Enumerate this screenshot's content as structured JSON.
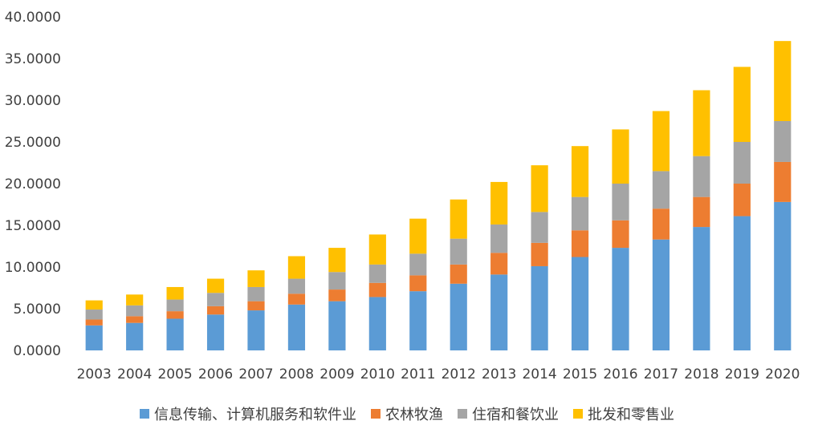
{
  "chart_data": {
    "type": "bar",
    "stacked": true,
    "categories": [
      "2003",
      "2004",
      "2005",
      "2006",
      "2007",
      "2008",
      "2009",
      "2010",
      "2011",
      "2012",
      "2013",
      "2014",
      "2015",
      "2016",
      "2017",
      "2018",
      "2019",
      "2020"
    ],
    "series": [
      {
        "name": "信息传输、计算机服务和软件业",
        "color": "#5b9bd5",
        "values": [
          3.0,
          3.3,
          3.8,
          4.3,
          4.8,
          5.5,
          5.9,
          6.4,
          7.1,
          8.0,
          9.1,
          10.1,
          11.2,
          12.3,
          13.3,
          14.8,
          16.1,
          17.8
        ]
      },
      {
        "name": "农林牧渔",
        "color": "#ed7d31",
        "values": [
          0.7,
          0.8,
          0.9,
          1.0,
          1.1,
          1.3,
          1.4,
          1.7,
          1.9,
          2.3,
          2.6,
          2.8,
          3.2,
          3.3,
          3.7,
          3.6,
          3.9,
          4.8
        ]
      },
      {
        "name": "住宿和餐饮业",
        "color": "#a5a5a5",
        "values": [
          1.2,
          1.3,
          1.4,
          1.6,
          1.7,
          1.8,
          2.1,
          2.2,
          2.6,
          3.1,
          3.4,
          3.7,
          4.0,
          4.4,
          4.5,
          4.9,
          5.0,
          4.9
        ]
      },
      {
        "name": "批发和零售业",
        "color": "#ffc000",
        "values": [
          1.1,
          1.3,
          1.5,
          1.7,
          2.0,
          2.7,
          2.9,
          3.6,
          4.2,
          4.7,
          5.1,
          5.6,
          6.1,
          6.5,
          7.2,
          7.9,
          9.0,
          9.6
        ]
      }
    ],
    "ylim": [
      0,
      40
    ],
    "yticks": [
      "0.0000",
      "5.0000",
      "10.0000",
      "15.0000",
      "20.0000",
      "25.0000",
      "30.0000",
      "35.0000",
      "40.0000"
    ],
    "title": "",
    "xlabel": "",
    "ylabel": "",
    "grid": false,
    "legend_position": "bottom"
  }
}
